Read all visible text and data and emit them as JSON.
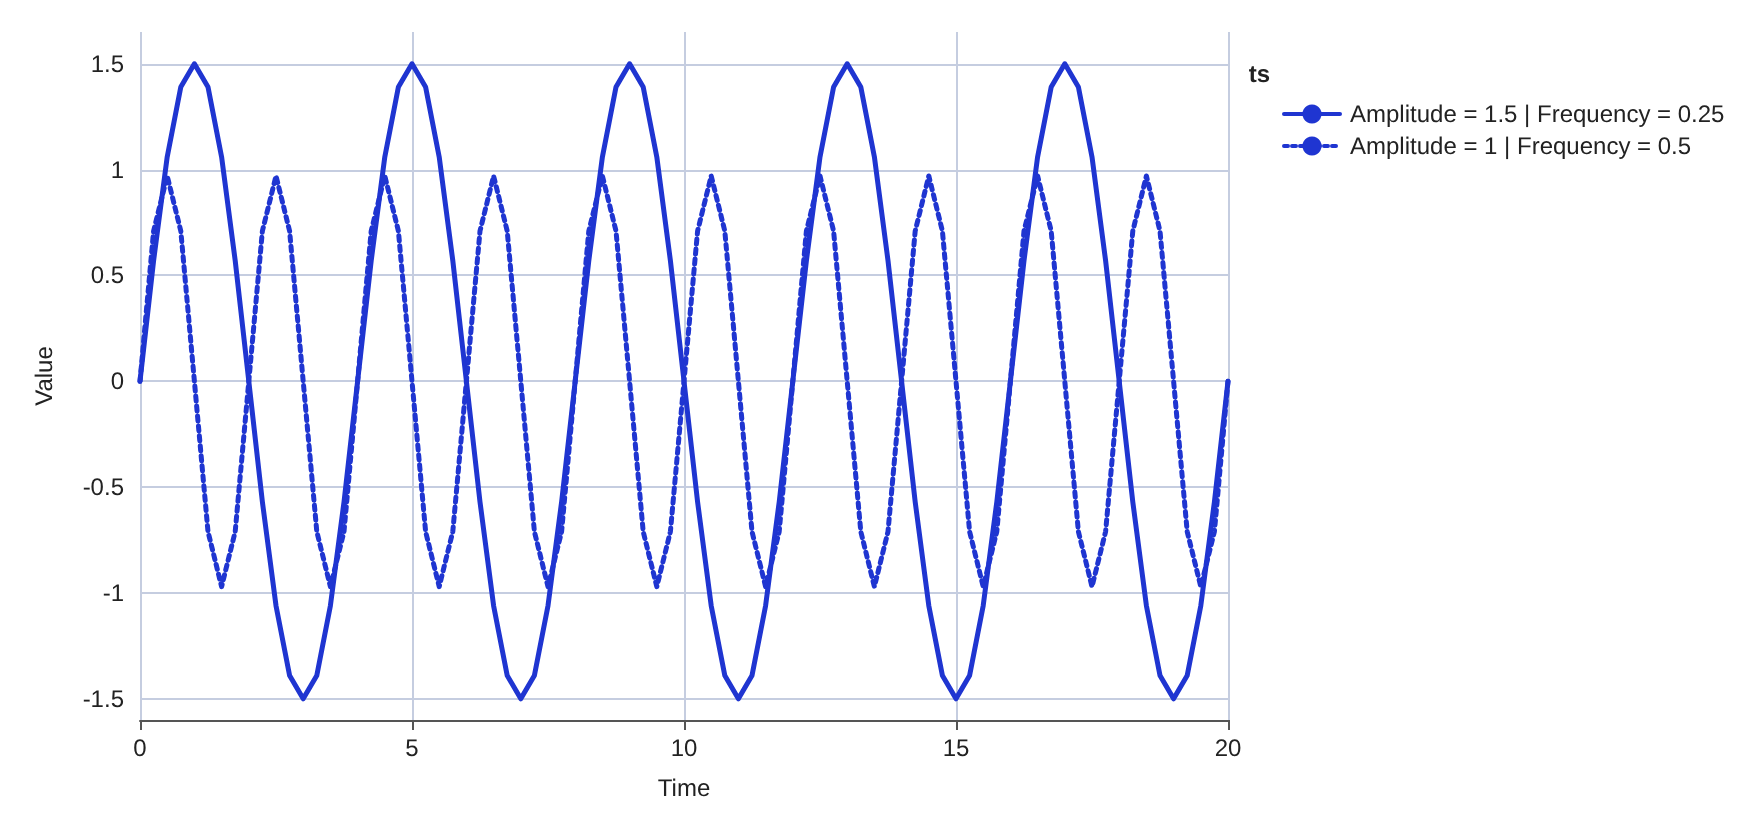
{
  "chart_data": {
    "type": "line",
    "xlabel": "Time",
    "ylabel": "Value",
    "legend_title": "ts",
    "x": [
      0,
      0.25,
      0.5,
      0.75,
      1,
      1.25,
      1.5,
      1.75,
      2,
      2.25,
      2.5,
      2.75,
      3,
      3.25,
      3.5,
      3.75,
      4,
      4.25,
      4.5,
      4.75,
      5,
      5.25,
      5.5,
      5.75,
      6,
      6.25,
      6.5,
      6.75,
      7,
      7.25,
      7.5,
      7.75,
      8,
      8.25,
      8.5,
      8.75,
      9,
      9.25,
      9.5,
      9.75,
      10,
      10.25,
      10.5,
      10.75,
      11,
      11.25,
      11.5,
      11.75,
      12,
      12.25,
      12.5,
      12.75,
      13,
      13.25,
      13.5,
      13.75,
      14,
      14.25,
      14.5,
      14.75,
      15,
      15.25,
      15.5,
      15.75,
      16,
      16.25,
      16.5,
      16.75,
      17,
      17.25,
      17.5,
      17.75,
      18,
      18.25,
      18.5,
      18.75,
      19,
      19.25,
      19.5,
      19.75,
      20
    ],
    "series": [
      {
        "name": "Amplitude = 1.5 | Frequency = 0.25",
        "color": "#1f35d1",
        "line_style": "solid",
        "values": [
          0,
          0.57,
          1.06,
          1.39,
          1.5,
          1.39,
          1.06,
          0.57,
          0,
          -0.57,
          -1.06,
          -1.39,
          -1.5,
          -1.39,
          -1.06,
          -0.57,
          0,
          0.57,
          1.06,
          1.39,
          1.5,
          1.39,
          1.06,
          0.57,
          0,
          -0.57,
          -1.06,
          -1.39,
          -1.5,
          -1.39,
          -1.06,
          -0.57,
          0,
          0.57,
          1.06,
          1.39,
          1.5,
          1.39,
          1.06,
          0.57,
          0,
          -0.57,
          -1.06,
          -1.39,
          -1.5,
          -1.39,
          -1.06,
          -0.57,
          0,
          0.57,
          1.06,
          1.39,
          1.5,
          1.39,
          1.06,
          0.57,
          0,
          -0.57,
          -1.06,
          -1.39,
          -1.5,
          -1.39,
          -1.06,
          -0.57,
          0,
          0.57,
          1.06,
          1.39,
          1.5,
          1.39,
          1.06,
          0.57,
          0,
          -0.57,
          -1.06,
          -1.39,
          -1.5,
          -1.39,
          -1.06,
          -0.57,
          0
        ]
      },
      {
        "name": "Amplitude = 1 | Frequency = 0.5",
        "color": "#1f35d1",
        "line_style": "dotted",
        "values": [
          0,
          0.71,
          0.97,
          0.71,
          0,
          -0.71,
          -0.97,
          -0.71,
          0,
          0.71,
          0.97,
          0.71,
          0,
          -0.71,
          -0.97,
          -0.71,
          0,
          0.71,
          0.97,
          0.71,
          0,
          -0.71,
          -0.97,
          -0.71,
          0,
          0.71,
          0.97,
          0.71,
          0,
          -0.71,
          -0.97,
          -0.71,
          0,
          0.71,
          0.97,
          0.71,
          0,
          -0.71,
          -0.97,
          -0.71,
          0,
          0.71,
          0.97,
          0.71,
          0,
          -0.71,
          -0.97,
          -0.71,
          0,
          0.71,
          0.97,
          0.71,
          0,
          -0.71,
          -0.97,
          -0.71,
          0,
          0.71,
          0.97,
          0.71,
          0,
          -0.71,
          -0.97,
          -0.71,
          0,
          0.71,
          0.97,
          0.71,
          0,
          -0.71,
          -0.97,
          -0.71,
          0,
          0.71,
          0.97,
          0.71,
          0,
          -0.71,
          -0.97,
          -0.71,
          0
        ]
      }
    ],
    "xlim": [
      0,
      20
    ],
    "xticks": [
      0,
      5,
      10,
      15,
      20
    ],
    "ylim": [
      -1.6,
      1.65
    ],
    "yticks": [
      -1.5,
      -1,
      -0.5,
      0,
      0.5,
      1,
      1.5
    ],
    "grid": true,
    "legend": "top right",
    "marker": "none"
  }
}
